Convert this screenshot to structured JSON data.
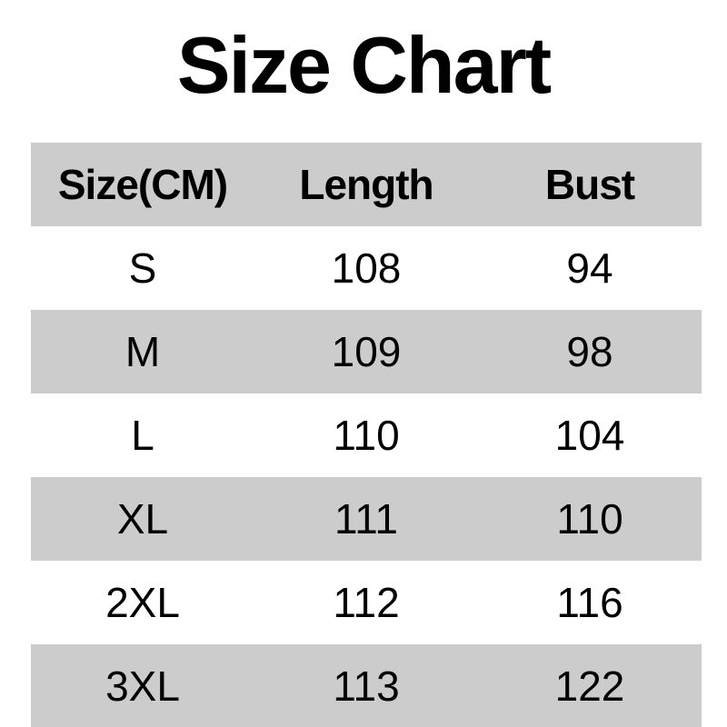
{
  "title": "Size Chart",
  "chart_data": {
    "type": "table",
    "title": "Size Chart",
    "columns": [
      "Size(CM)",
      "Length",
      "Bust"
    ],
    "rows": [
      [
        "S",
        "108",
        "94"
      ],
      [
        "M",
        "109",
        "98"
      ],
      [
        "L",
        "110",
        "104"
      ],
      [
        "XL",
        "111",
        "110"
      ],
      [
        "2XL",
        "112",
        "116"
      ],
      [
        "3XL",
        "113",
        "122"
      ]
    ],
    "layout": {
      "grid": false,
      "borders": false,
      "banding": "header and alternate rows shaded"
    }
  },
  "colors": {
    "background": "#ffffff",
    "row_shade": "#cccccc",
    "text": "#000000"
  }
}
